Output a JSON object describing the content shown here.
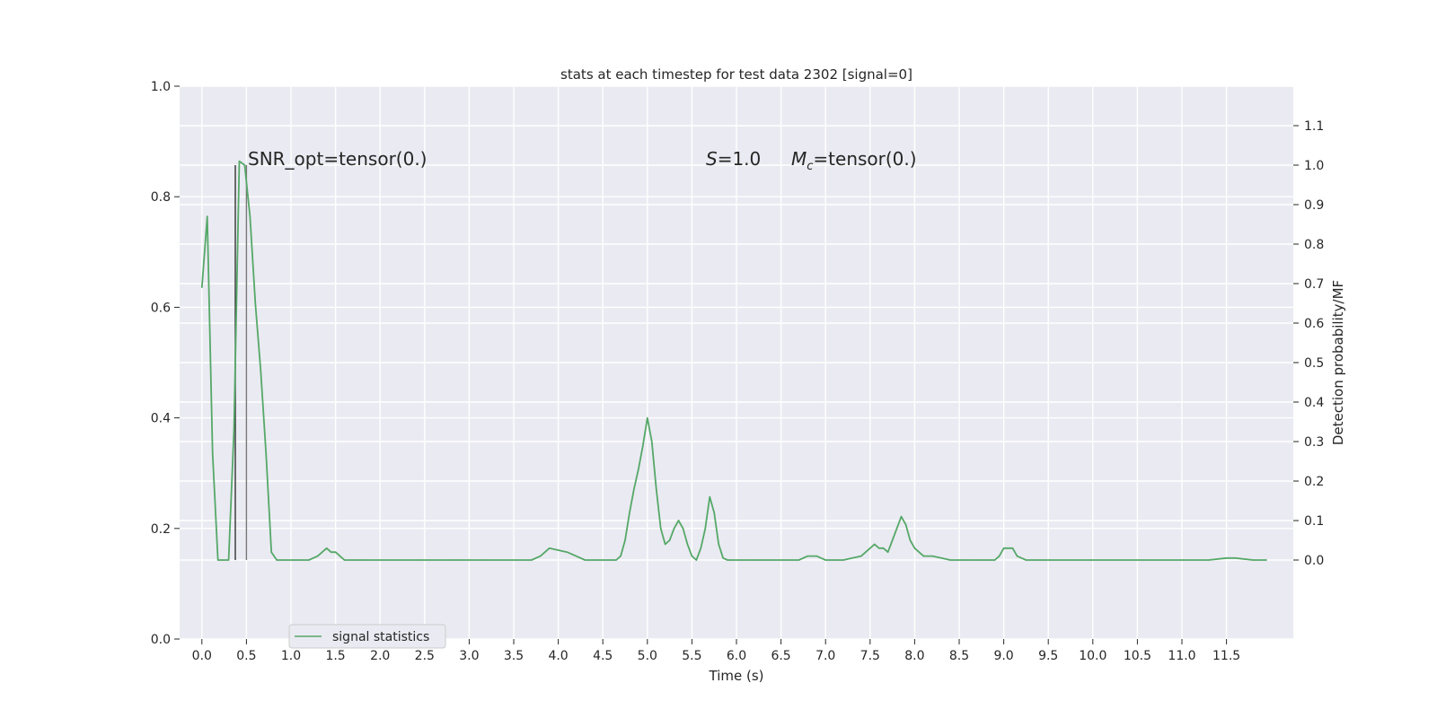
{
  "chart_data": {
    "type": "line",
    "title": "stats at each timestep for test data 2302 [signal=0]",
    "xlabel": "Time (s)",
    "ylabel_right": "Detection probability/MF",
    "xlim": [
      -0.25,
      12.25
    ],
    "ylim_left": [
      0.0,
      1.0
    ],
    "ylim_right": [
      -0.2,
      1.2
    ],
    "grid": true,
    "x_ticks": [
      "0.0",
      "0.5",
      "1.0",
      "1.5",
      "2.0",
      "2.5",
      "3.0",
      "3.5",
      "4.0",
      "4.5",
      "5.0",
      "5.5",
      "6.0",
      "6.5",
      "7.0",
      "7.5",
      "8.0",
      "8.5",
      "9.0",
      "9.5",
      "10.0",
      "10.5",
      "11.0",
      "11.5"
    ],
    "y_left_ticks": [
      "0.0",
      "0.2",
      "0.4",
      "0.6",
      "0.8",
      "1.0"
    ],
    "y_right_ticks": [
      "0.0",
      "0.1",
      "0.2",
      "0.3",
      "0.4",
      "0.5",
      "0.6",
      "0.7",
      "0.8",
      "0.9",
      "1.0",
      "1.1"
    ],
    "annotations": {
      "snr": "SNR_opt=tensor(0.)",
      "s": "=1.0",
      "s_symbol": "S",
      "mc": "=tensor(0.)",
      "mc_symbol": "M",
      "mc_sub": "c"
    },
    "legend": {
      "placement": "lower-left",
      "entries": [
        "signal statistics"
      ]
    },
    "series": [
      {
        "name": "signal statistics",
        "color": "#55a868",
        "axis": "right",
        "x": [
          0.0,
          0.06,
          0.12,
          0.18,
          0.24,
          0.3,
          0.36,
          0.42,
          0.48,
          0.54,
          0.6,
          0.66,
          0.72,
          0.78,
          0.84,
          0.9,
          1.0,
          1.1,
          1.2,
          1.3,
          1.4,
          1.45,
          1.5,
          1.55,
          1.6,
          1.7,
          1.8,
          2.0,
          2.5,
          2.8,
          2.9,
          3.0,
          3.2,
          3.5,
          3.7,
          3.8,
          3.9,
          4.0,
          4.1,
          4.2,
          4.3,
          4.4,
          4.5,
          4.6,
          4.65,
          4.7,
          4.75,
          4.8,
          4.85,
          4.9,
          4.95,
          5.0,
          5.05,
          5.1,
          5.15,
          5.2,
          5.25,
          5.3,
          5.35,
          5.4,
          5.45,
          5.5,
          5.55,
          5.6,
          5.65,
          5.7,
          5.75,
          5.8,
          5.85,
          5.9,
          5.95,
          6.0,
          6.05,
          6.1,
          6.2,
          6.3,
          6.4,
          6.5,
          6.6,
          6.7,
          6.8,
          6.9,
          6.95,
          7.0,
          7.05,
          7.1,
          7.2,
          7.3,
          7.4,
          7.5,
          7.55,
          7.6,
          7.65,
          7.7,
          7.75,
          7.8,
          7.85,
          7.9,
          7.95,
          8.0,
          8.05,
          8.1,
          8.15,
          8.2,
          8.3,
          8.4,
          8.5,
          8.6,
          8.7,
          8.8,
          8.9,
          8.95,
          9.0,
          9.05,
          9.1,
          9.15,
          9.2,
          9.25,
          9.3,
          9.4,
          9.5,
          10.0,
          10.5,
          11.0,
          11.3,
          11.5,
          11.6,
          11.8,
          11.95
        ],
        "y": [
          0.69,
          0.87,
          0.27,
          0.0,
          0.0,
          0.0,
          0.33,
          1.01,
          1.0,
          0.87,
          0.65,
          0.48,
          0.27,
          0.02,
          0.0,
          0.0,
          0.0,
          0.0,
          0.0,
          0.01,
          0.03,
          0.02,
          0.02,
          0.01,
          0.0,
          0.0,
          0.0,
          0.0,
          0.0,
          0.0,
          0.0,
          0.0,
          0.0,
          0.0,
          0.0,
          0.01,
          0.03,
          0.025,
          0.02,
          0.01,
          0.0,
          0.0,
          0.0,
          0.0,
          0.0,
          0.01,
          0.05,
          0.12,
          0.18,
          0.23,
          0.29,
          0.36,
          0.3,
          0.18,
          0.08,
          0.04,
          0.05,
          0.08,
          0.1,
          0.08,
          0.04,
          0.01,
          0.0,
          0.03,
          0.08,
          0.16,
          0.12,
          0.04,
          0.005,
          0.0,
          0.0,
          0.0,
          0.0,
          0.0,
          0.0,
          0.0,
          0.0,
          0.0,
          0.0,
          0.0,
          0.01,
          0.01,
          0.005,
          0.0,
          0.0,
          0.0,
          0.0,
          0.005,
          0.01,
          0.03,
          0.04,
          0.03,
          0.03,
          0.02,
          0.05,
          0.08,
          0.11,
          0.09,
          0.05,
          0.03,
          0.02,
          0.01,
          0.01,
          0.01,
          0.005,
          0.0,
          0.0,
          0.0,
          0.0,
          0.0,
          0.0,
          0.01,
          0.03,
          0.03,
          0.03,
          0.01,
          0.005,
          0.0,
          0.0,
          0.0,
          0.0,
          0.0,
          0.0,
          0.0,
          0.0,
          0.005,
          0.005,
          0.0,
          0.0
        ]
      }
    ],
    "vertical_markers": [
      {
        "x": 0.375,
        "y_bottom": 0.0,
        "y_top": 1.0,
        "color": "#333333"
      },
      {
        "x": 0.5,
        "y_bottom": 0.0,
        "y_top": 1.0,
        "color": "#777777"
      }
    ]
  }
}
